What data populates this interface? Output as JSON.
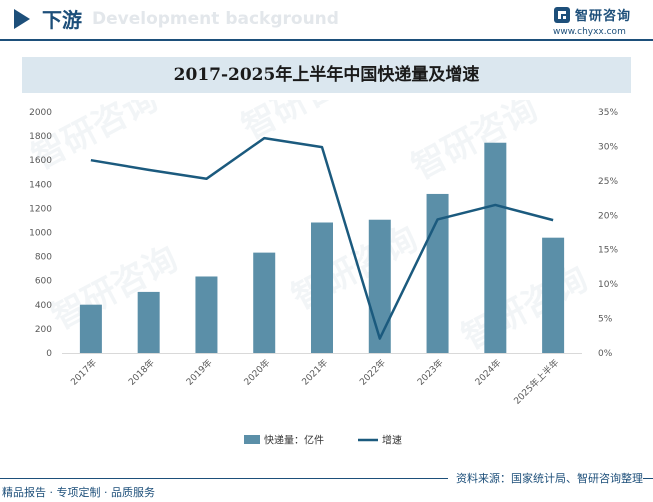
{
  "header": {
    "title": "下游",
    "bg_text": "Development background"
  },
  "brand": {
    "name": "智研咨询",
    "url": "www.chyxx.com"
  },
  "watermark": {
    "text": "智研咨询"
  },
  "footer": {
    "source": "资料来源：国家统计局、智研咨询整理",
    "slogan": "精品报告 · 专项定制 · 品质服务"
  },
  "colors": {
    "brand": "#1d4f7a",
    "bar": "#5b8fa8",
    "line": "#1b5a7e",
    "title_bg": "#dbe7ef"
  },
  "chart_data": {
    "type": "bar",
    "title": "2017-2025年上半年中国快递量及增速",
    "categories": [
      "2017年",
      "2018年",
      "2019年",
      "2020年",
      "2021年",
      "2022年",
      "2023年",
      "2024年",
      "2025年上半年"
    ],
    "series": [
      {
        "name": "快递量：亿件",
        "type": "bar",
        "axis": "left",
        "values": [
          401,
          507,
          635,
          833,
          1083,
          1106,
          1320,
          1745,
          957
        ]
      },
      {
        "name": "增速",
        "type": "line",
        "axis": "right",
        "values": [
          28.0,
          26.6,
          25.3,
          31.2,
          29.9,
          2.1,
          19.4,
          21.5,
          19.3
        ]
      }
    ],
    "y_left": {
      "ylim": [
        0,
        2000
      ],
      "ticks": [
        "0",
        "200",
        "400",
        "600",
        "800",
        "1000",
        "1200",
        "1400",
        "1600",
        "1800",
        "2000"
      ]
    },
    "y_right": {
      "ylim": [
        0,
        35
      ],
      "ticks": [
        "0%",
        "5%",
        "10%",
        "15%",
        "20%",
        "25%",
        "30%",
        "35%"
      ]
    },
    "legend_position": "bottom",
    "grid": false
  }
}
